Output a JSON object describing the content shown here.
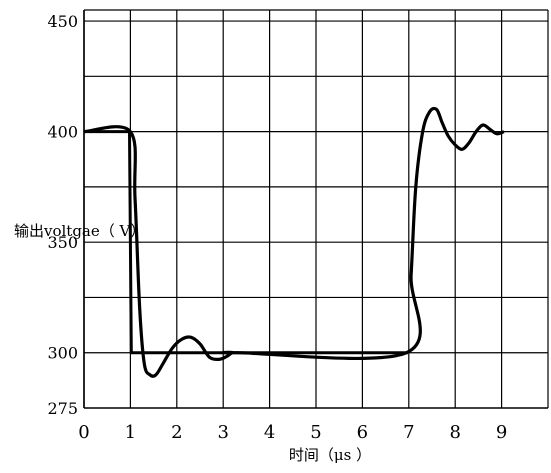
{
  "chart_data": {
    "type": "line",
    "title": "",
    "xlabel": "时间（μs ）",
    "ylabel": "输出voltgae（ V）",
    "xlim": [
      0,
      10
    ],
    "ylim": [
      275,
      455
    ],
    "x_ticks": [
      "0",
      "1",
      "2",
      "3",
      "4",
      "5",
      "6",
      "7",
      "8",
      "9"
    ],
    "y_ticks": [
      "275",
      "300",
      "350",
      "400",
      "450"
    ],
    "grid": true,
    "series": [
      {
        "x": [
          0,
          0.98,
          1.02,
          6.95,
          6.98
        ],
        "y": [
          400,
          400,
          300,
          300,
          300
        ]
      },
      {
        "x": [
          0,
          1.0,
          1.1,
          1.2,
          1.3,
          1.42,
          1.55,
          1.7,
          1.9,
          2.1,
          2.3,
          2.5,
          2.7,
          2.9,
          3.05,
          3.2,
          3.3,
          6.95,
          7.05,
          7.15,
          7.3,
          7.45,
          7.6,
          7.72,
          7.85,
          8.0,
          8.15,
          8.3,
          8.45,
          8.6,
          8.75,
          8.9,
          9.05
        ],
        "y": [
          400,
          400,
          370,
          320,
          295,
          290,
          290,
          295,
          302,
          306,
          307,
          304,
          298,
          297,
          298,
          300,
          300,
          300,
          335,
          375,
          400,
          409,
          410,
          404,
          398,
          394,
          392,
          395,
          400,
          403,
          401,
          399,
          400
        ]
      }
    ]
  }
}
